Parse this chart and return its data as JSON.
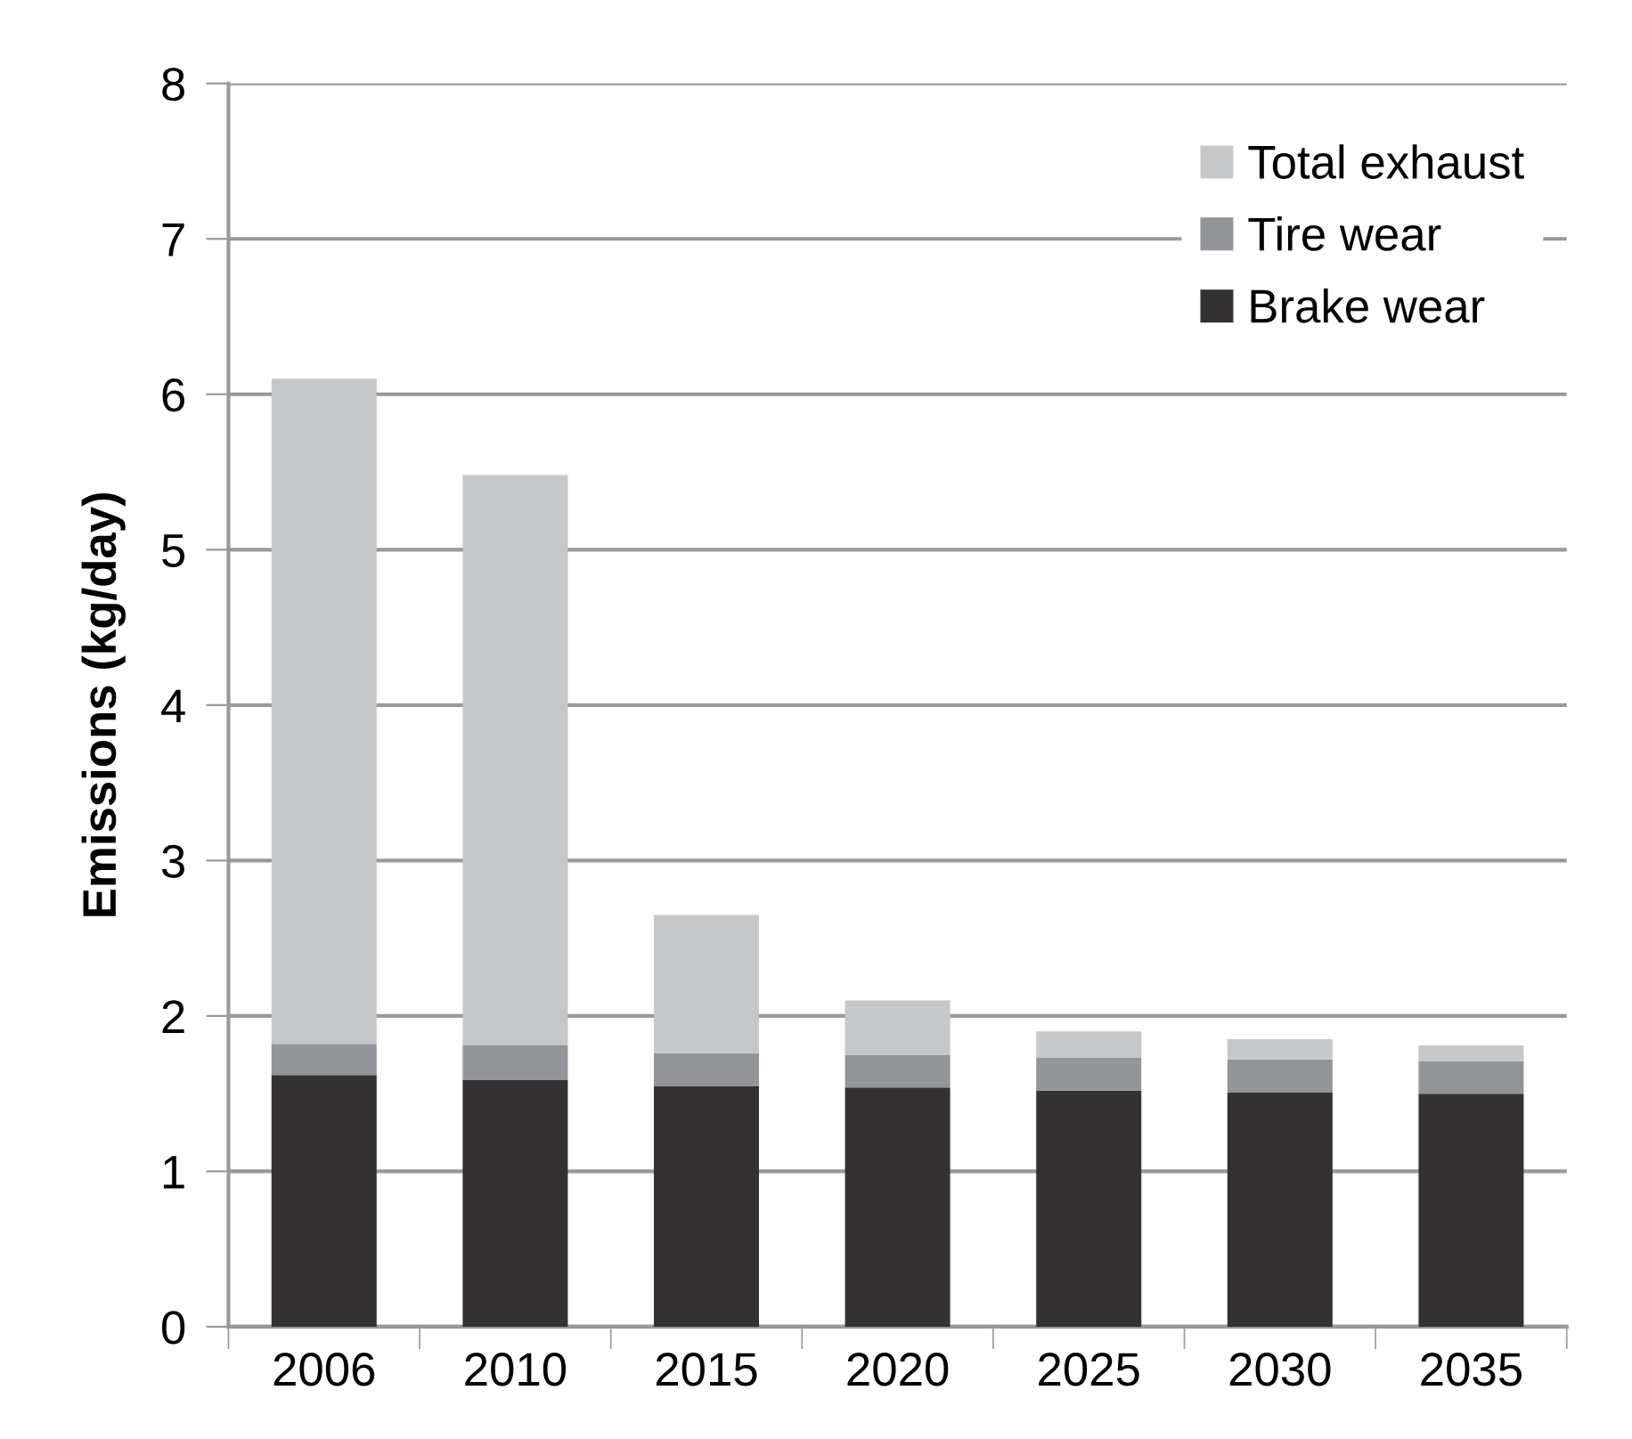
{
  "chart_data": {
    "type": "bar",
    "stacked": true,
    "ylabel": "Emissions (kg/day)",
    "categories": [
      "2006",
      "2010",
      "2015",
      "2020",
      "2025",
      "2030",
      "2035"
    ],
    "series": [
      {
        "name": "Brake wear",
        "color": "#333132",
        "values": [
          1.62,
          1.59,
          1.55,
          1.54,
          1.52,
          1.51,
          1.5
        ]
      },
      {
        "name": "Tire wear",
        "color": "#939598",
        "values": [
          0.2,
          0.22,
          0.21,
          0.21,
          0.21,
          0.21,
          0.21
        ]
      },
      {
        "name": "Total exhaust",
        "color": "#c6c7c9",
        "values": [
          4.28,
          3.67,
          0.89,
          0.35,
          0.17,
          0.13,
          0.1
        ]
      }
    ],
    "ylim": [
      0,
      8
    ],
    "yticks": [
      0,
      1,
      2,
      3,
      4,
      5,
      6,
      7,
      8
    ],
    "grid": "y",
    "legend": "top right"
  }
}
